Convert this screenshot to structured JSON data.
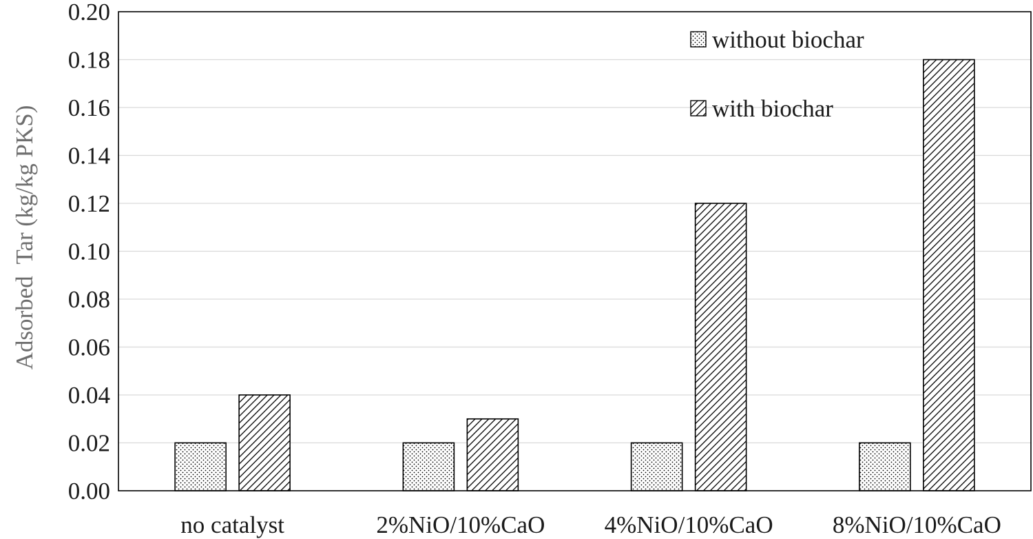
{
  "chart_data": {
    "type": "bar",
    "title": "",
    "xlabel": "",
    "ylabel": "Adsorbed  Tar (kg/kg PKS)",
    "ylim": [
      0,
      0.2
    ],
    "yticks": [
      "0.00",
      "0.02",
      "0.04",
      "0.06",
      "0.08",
      "0.10",
      "0.12",
      "0.14",
      "0.16",
      "0.18",
      "0.20"
    ],
    "categories": [
      "no catalyst",
      "2%NiO/10%CaO",
      "4%NiO/10%CaO",
      "8%NiO/10%CaO"
    ],
    "series": [
      {
        "name": "without biochar",
        "values": [
          0.02,
          0.02,
          0.02,
          0.02
        ],
        "pattern": "dots"
      },
      {
        "name": "with biochar",
        "values": [
          0.04,
          0.03,
          0.12,
          0.18
        ],
        "pattern": "diagonal-hatch"
      }
    ],
    "grid": true,
    "legend_position": "top-right",
    "colors": {
      "axis": "#000000",
      "grid": "#d9d9d9",
      "bar_fill": "#ffffff",
      "ink": "#000000",
      "ylabel": "#6e6e6e"
    }
  }
}
